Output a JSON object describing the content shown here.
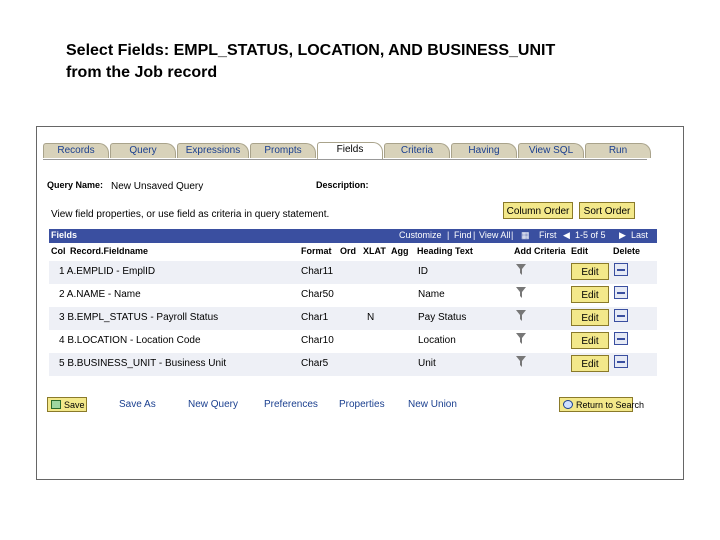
{
  "slide_title_line1": "Select Fields: EMPL_STATUS, LOCATION, AND BUSINESS_UNIT",
  "slide_title_line2": "from the Job record",
  "tabs": [
    "Records",
    "Query",
    "Expressions",
    "Prompts",
    "Fields",
    "Criteria",
    "Having",
    "View SQL",
    "Run"
  ],
  "active_tab": "Fields",
  "query_name_label": "Query Name:",
  "query_name_value": "New Unsaved Query",
  "description_label": "Description:",
  "hint": "View field properties, or use field as criteria in query statement.",
  "column_order_btn": "Column Order",
  "sort_order_btn": "Sort Order",
  "grid": {
    "title": "Fields",
    "customize": "Customize",
    "find": "Find",
    "view_all": "View All",
    "first": "First",
    "range": "1-5 of 5",
    "last": "Last"
  },
  "columns": {
    "col": "Col",
    "record_fieldname": "Record.Fieldname",
    "format": "Format",
    "ord": "Ord",
    "xlat": "XLAT",
    "agg": "Agg",
    "heading_text": "Heading Text",
    "add_criteria": "Add Criteria",
    "edit": "Edit",
    "delete": "Delete"
  },
  "rows": [
    {
      "fieldname": "1  A.EMPLID - EmplID",
      "format": "Char11",
      "xlat": "",
      "heading": "ID"
    },
    {
      "fieldname": "2  A.NAME - Name",
      "format": "Char50",
      "xlat": "",
      "heading": "Name"
    },
    {
      "fieldname": "3  B.EMPL_STATUS - Payroll Status",
      "format": "Char1",
      "xlat": "N",
      "heading": "Pay Status"
    },
    {
      "fieldname": "4  B.LOCATION - Location Code",
      "format": "Char10",
      "xlat": "",
      "heading": "Location"
    },
    {
      "fieldname": "5  B.BUSINESS_UNIT - Business Unit",
      "format": "Char5",
      "xlat": "",
      "heading": "Unit"
    }
  ],
  "edit_label": "Edit",
  "bottom": {
    "save": "Save",
    "save_as": "Save As",
    "new_query": "New Query",
    "preferences": "Preferences",
    "properties": "Properties",
    "new_union": "New Union",
    "return_to_search": "Return to Search"
  }
}
